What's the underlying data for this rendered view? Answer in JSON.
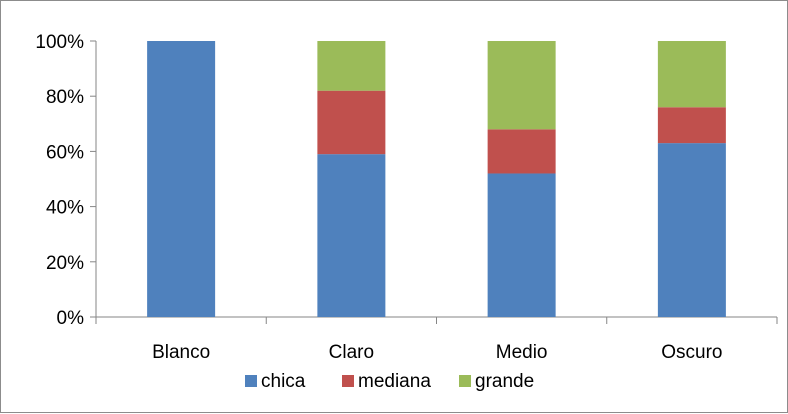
{
  "chart_data": {
    "type": "bar",
    "stacked": true,
    "percent": true,
    "categories": [
      "Blanco",
      "Claro",
      "Medio",
      "Oscuro"
    ],
    "series": [
      {
        "name": "chica",
        "color": "#4f81bd",
        "values": [
          100,
          59,
          52,
          63
        ]
      },
      {
        "name": "mediana",
        "color": "#c0504d",
        "values": [
          0,
          23,
          16,
          13
        ]
      },
      {
        "name": "grande",
        "color": "#9bbb59",
        "values": [
          0,
          18,
          32,
          24
        ]
      }
    ],
    "yticks": [
      "0%",
      "20%",
      "40%",
      "60%",
      "80%",
      "100%"
    ],
    "ylim": [
      0,
      100
    ],
    "legend": "bottom",
    "grid": false
  }
}
